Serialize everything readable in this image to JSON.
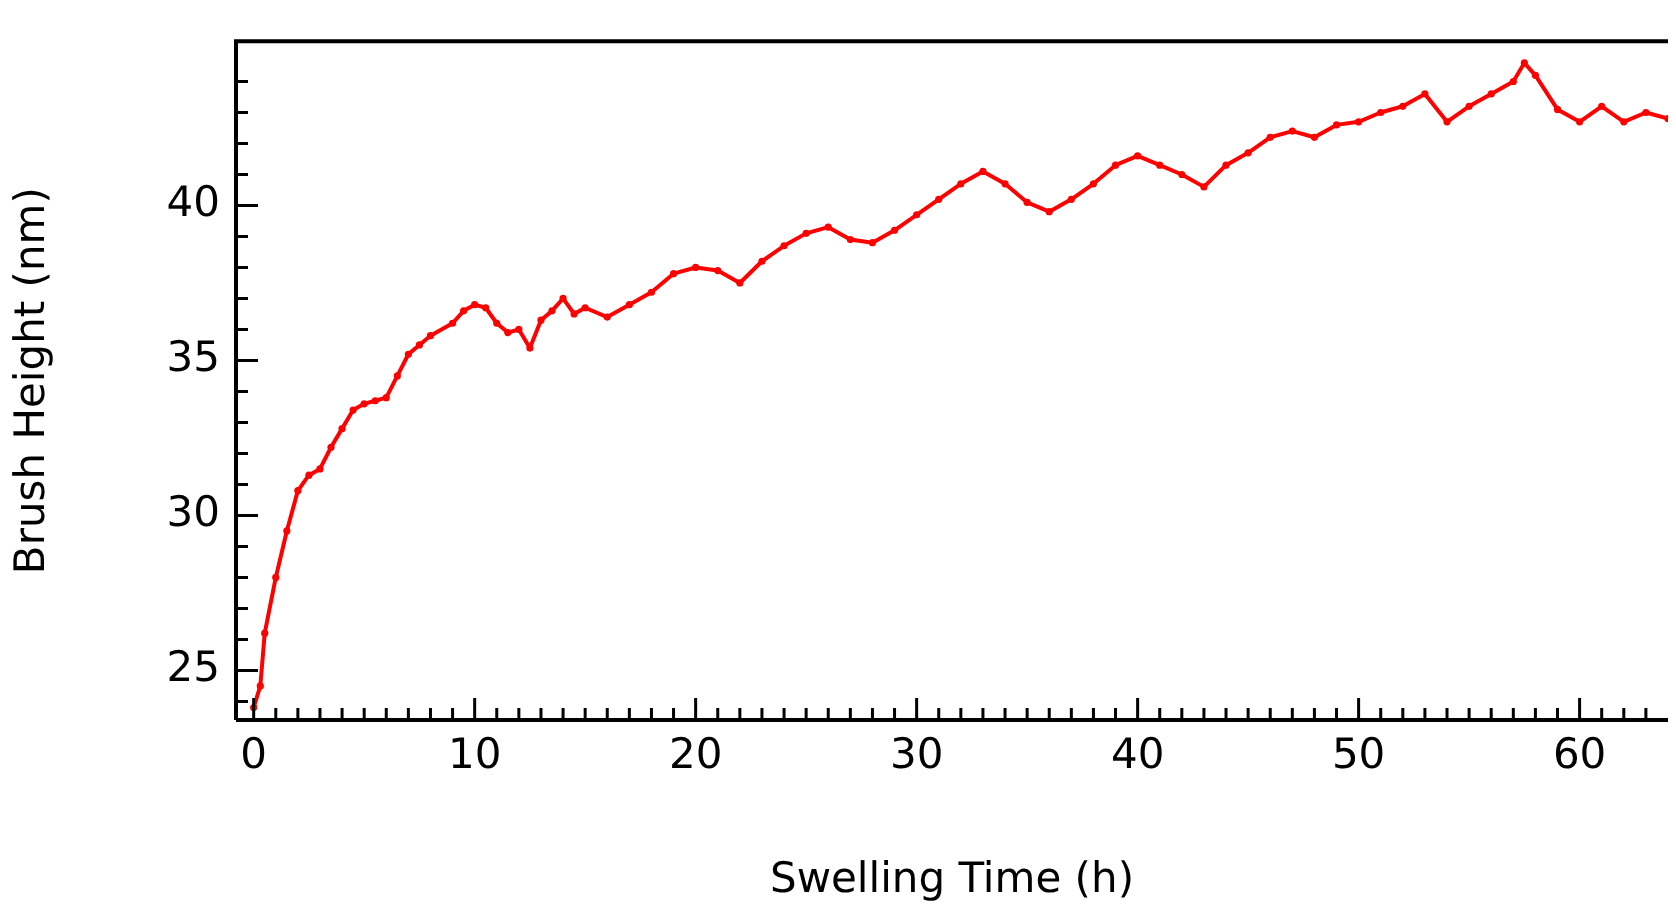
{
  "chart_data": {
    "type": "line",
    "xlabel": "Swelling Time (h)",
    "ylabel": "Brush Height (nm)",
    "xlim": [
      -0.8,
      64
    ],
    "ylim": [
      23.4,
      45.3
    ],
    "xticks": [
      0,
      {
        "value": 1,
        "label": null
      },
      {
        "value": 2,
        "label": null
      },
      {
        "value": 3,
        "label": null
      },
      {
        "value": 4,
        "label": null
      },
      {
        "value": 5,
        "label": null
      },
      {
        "value": 6,
        "label": null
      },
      {
        "value": 7,
        "label": null
      },
      {
        "value": 8,
        "label": null
      },
      {
        "value": 9,
        "label": null
      },
      10,
      {
        "value": 11,
        "label": null
      },
      {
        "value": 12,
        "label": null
      },
      {
        "value": 13,
        "label": null
      },
      {
        "value": 14,
        "label": null
      },
      {
        "value": 15,
        "label": null
      },
      {
        "value": 16,
        "label": null
      },
      {
        "value": 17,
        "label": null
      },
      {
        "value": 18,
        "label": null
      },
      {
        "value": 19,
        "label": null
      },
      20,
      {
        "value": 21,
        "label": null
      },
      {
        "value": 22,
        "label": null
      },
      {
        "value": 23,
        "label": null
      },
      {
        "value": 24,
        "label": null
      },
      {
        "value": 25,
        "label": null
      },
      {
        "value": 26,
        "label": null
      },
      {
        "value": 27,
        "label": null
      },
      {
        "value": 28,
        "label": null
      },
      {
        "value": 29,
        "label": null
      },
      30,
      {
        "value": 31,
        "label": null
      },
      {
        "value": 32,
        "label": null
      },
      {
        "value": 33,
        "label": null
      },
      {
        "value": 34,
        "label": null
      },
      {
        "value": 35,
        "label": null
      },
      {
        "value": 36,
        "label": null
      },
      {
        "value": 37,
        "label": null
      },
      {
        "value": 38,
        "label": null
      },
      {
        "value": 39,
        "label": null
      },
      40,
      {
        "value": 41,
        "label": null
      },
      {
        "value": 42,
        "label": null
      },
      {
        "value": 43,
        "label": null
      },
      {
        "value": 44,
        "label": null
      },
      {
        "value": 45,
        "label": null
      },
      {
        "value": 46,
        "label": null
      },
      {
        "value": 47,
        "label": null
      },
      {
        "value": 48,
        "label": null
      },
      {
        "value": 49,
        "label": null
      },
      50,
      {
        "value": 51,
        "label": null
      },
      {
        "value": 52,
        "label": null
      },
      {
        "value": 53,
        "label": null
      },
      {
        "value": 54,
        "label": null
      },
      {
        "value": 55,
        "label": null
      },
      {
        "value": 56,
        "label": null
      },
      {
        "value": 57,
        "label": null
      },
      {
        "value": 58,
        "label": null
      },
      {
        "value": 59,
        "label": null
      },
      60,
      {
        "value": 61,
        "label": null
      },
      {
        "value": 62,
        "label": null
      },
      {
        "value": 63,
        "label": null
      }
    ],
    "yticks": [
      {
        "value": 24,
        "label": null
      },
      25,
      {
        "value": 26,
        "label": null
      },
      {
        "value": 27,
        "label": null
      },
      {
        "value": 28,
        "label": null
      },
      {
        "value": 29,
        "label": null
      },
      30,
      {
        "value": 31,
        "label": null
      },
      {
        "value": 32,
        "label": null
      },
      {
        "value": 33,
        "label": null
      },
      {
        "value": 34,
        "label": null
      },
      35,
      {
        "value": 36,
        "label": null
      },
      {
        "value": 37,
        "label": null
      },
      {
        "value": 38,
        "label": null
      },
      {
        "value": 39,
        "label": null
      },
      40,
      {
        "value": 41,
        "label": null
      },
      {
        "value": 42,
        "label": null
      },
      {
        "value": 43,
        "label": null
      },
      {
        "value": 44,
        "label": null
      }
    ],
    "grid": false,
    "marker": "circle",
    "line_style": "solid",
    "series": [
      {
        "color": "#ff0000",
        "x": [
          0,
          0.3,
          0.5,
          1,
          1.5,
          2,
          2.5,
          3,
          3.5,
          4,
          4.5,
          5,
          5.5,
          6,
          6.5,
          7,
          7.5,
          8,
          9,
          9.5,
          10,
          10.5,
          11,
          11.5,
          12,
          12.5,
          13,
          13.5,
          14,
          14.5,
          15,
          16,
          17,
          18,
          19,
          20,
          21,
          22,
          23,
          24,
          25,
          26,
          27,
          28,
          29,
          30,
          31,
          32,
          33,
          34,
          35,
          36,
          37,
          38,
          39,
          40,
          41,
          42,
          43,
          44,
          45,
          46,
          47,
          48,
          49,
          50,
          51,
          52,
          53,
          54,
          55,
          56,
          57,
          57.5,
          58,
          59,
          60,
          61,
          62,
          63,
          64
        ],
        "values": [
          23.8,
          24.5,
          26.2,
          28,
          29.5,
          30.8,
          31.3,
          31.5,
          32.2,
          32.8,
          33.4,
          33.6,
          33.7,
          33.8,
          34.5,
          35.2,
          35.5,
          35.8,
          36.2,
          36.6,
          36.8,
          36.7,
          36.2,
          35.9,
          36,
          35.4,
          36.3,
          36.6,
          37,
          36.5,
          36.7,
          36.4,
          36.8,
          37.2,
          37.8,
          38,
          37.9,
          37.5,
          38.2,
          38.7,
          39.1,
          39.3,
          38.9,
          38.8,
          39.2,
          39.7,
          40.2,
          40.7,
          41.1,
          40.7,
          40.1,
          39.8,
          40.2,
          40.7,
          41.3,
          41.6,
          41.3,
          41,
          40.6,
          41.3,
          41.7,
          42.2,
          42.4,
          42.2,
          42.6,
          42.7,
          43,
          43.2,
          43.6,
          42.7,
          43.2,
          43.6,
          44,
          44.6,
          44.2,
          43.1,
          42.7,
          43.2,
          42.7,
          43,
          42.8
        ]
      }
    ]
  }
}
